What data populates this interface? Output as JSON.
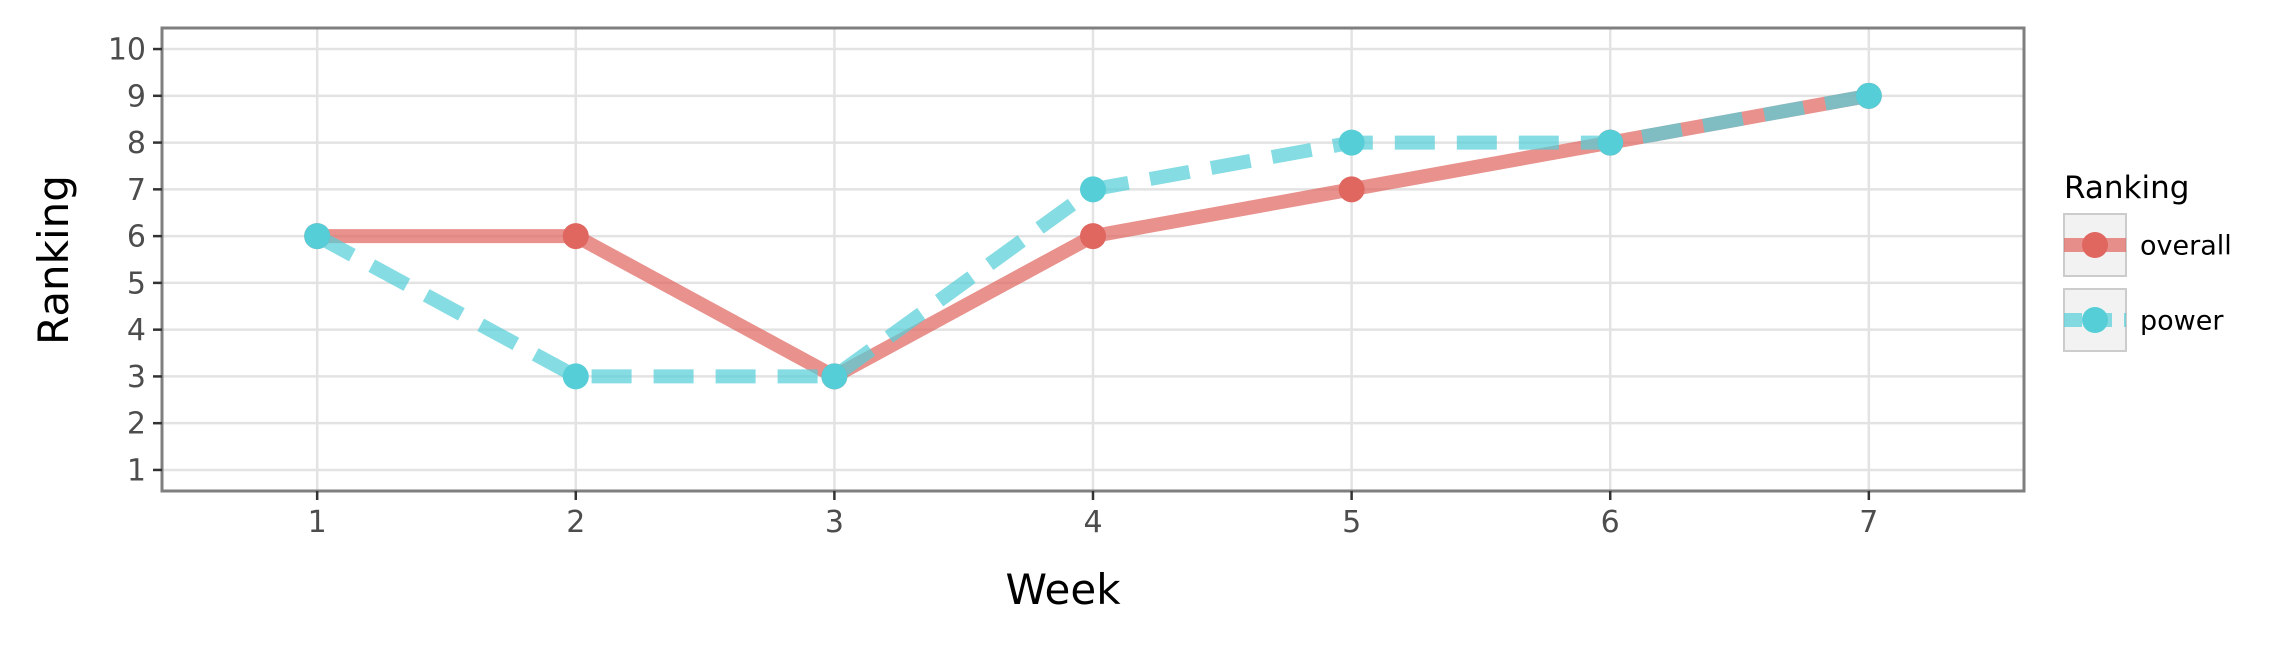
{
  "chart_data": {
    "type": "line",
    "title": "",
    "xlabel": "Week",
    "ylabel": "Ranking",
    "x": [
      1,
      2,
      3,
      4,
      5,
      6,
      7
    ],
    "xlim": [
      0.4,
      7.6
    ],
    "ylim": [
      10.45,
      0.55
    ],
    "y_reversed": true,
    "x_ticks": [
      1,
      2,
      3,
      4,
      5,
      6,
      7
    ],
    "y_ticks": [
      1,
      2,
      3,
      4,
      5,
      6,
      7,
      8,
      9,
      10
    ],
    "grid": true,
    "legend": {
      "title": "Ranking",
      "position": "right"
    },
    "series": [
      {
        "name": "overall",
        "values": [
          6,
          6,
          3,
          6,
          7,
          8,
          9
        ],
        "color": "#E06660",
        "line_style": "solid"
      },
      {
        "name": "power",
        "values": [
          6,
          3,
          3,
          7,
          8,
          8,
          9
        ],
        "color": "#56CED8",
        "line_style": "dashed"
      }
    ]
  }
}
